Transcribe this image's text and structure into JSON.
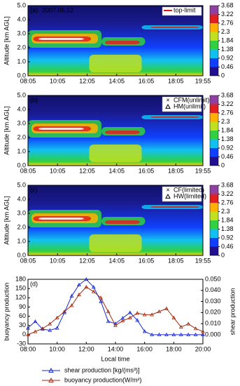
{
  "chart_data": [
    {
      "type": "heatmap",
      "panel_label": "(a)",
      "annotation": "2007.06.12",
      "ylabel": "Altitude [km AGL]",
      "xlim": [
        8.083,
        19.917
      ],
      "xticks": [
        {
          "value": 8.083,
          "label": "08:05"
        },
        {
          "value": 10.083,
          "label": "10:05"
        },
        {
          "value": 12.083,
          "label": "12:05"
        },
        {
          "value": 14.083,
          "label": "14:05"
        },
        {
          "value": 16.083,
          "label": "16:05"
        },
        {
          "value": 18.083,
          "label": "18:05"
        },
        {
          "value": 19.917,
          "label": "19:55"
        }
      ],
      "ylim": [
        0,
        5
      ],
      "yticks": [
        {
          "value": 0,
          "label": "0.0"
        },
        {
          "value": 1,
          "label": "1.0"
        },
        {
          "value": 2,
          "label": "2.0"
        },
        {
          "value": 3,
          "label": "3.0"
        },
        {
          "value": 4,
          "label": "4.0"
        },
        {
          "value": 5,
          "label": "5.0"
        }
      ],
      "colorbar_ticks": [
        0,
        0.46,
        0.92,
        1.38,
        1.84,
        2.3,
        2.76,
        3.22,
        3.68
      ],
      "colorbar_colors": [
        "#201090",
        "#1040ff",
        "#10c0f0",
        "#30d040",
        "#c0e020",
        "#ffb000",
        "#e02020",
        "#9040a0"
      ],
      "legend": [
        {
          "label": "top-limit",
          "color": "#d01818",
          "marker": "line"
        }
      ]
    },
    {
      "type": "heatmap",
      "panel_label": "(b)",
      "ylabel": "Altitude [km AGL]",
      "xlim": [
        8.083,
        19.917
      ],
      "xticks": [
        {
          "value": 8.083,
          "label": "08:05"
        },
        {
          "value": 10.083,
          "label": "10:05"
        },
        {
          "value": 12.083,
          "label": "12:05"
        },
        {
          "value": 14.083,
          "label": "14:05"
        },
        {
          "value": 16.083,
          "label": "16:05"
        },
        {
          "value": 18.083,
          "label": "18:05"
        },
        {
          "value": 19.917,
          "label": "19:55"
        }
      ],
      "ylim": [
        0,
        5
      ],
      "yticks": [
        {
          "value": 0,
          "label": "0.0"
        },
        {
          "value": 1,
          "label": "1.0"
        },
        {
          "value": 2,
          "label": "2.0"
        },
        {
          "value": 3,
          "label": "3.0"
        },
        {
          "value": 4,
          "label": "4.0"
        },
        {
          "value": 5,
          "label": "5.0"
        }
      ],
      "colorbar_ticks": [
        0,
        0.46,
        0.92,
        1.38,
        1.84,
        2.3,
        2.76,
        3.22,
        3.68
      ],
      "colorbar_colors": [
        "#201090",
        "#1040ff",
        "#10c0f0",
        "#30d040",
        "#c0e020",
        "#ffb000",
        "#e02020",
        "#9040a0"
      ],
      "legend": [
        {
          "label": "CFM(unlimit)",
          "color": "#d01818",
          "marker": "x"
        },
        {
          "label": "HM(unlimit)",
          "color": "#000000",
          "marker": "triangle"
        }
      ]
    },
    {
      "type": "heatmap",
      "panel_label": "(c)",
      "ylabel": "Altitude [km AGL]",
      "xlim": [
        8.083,
        19.917
      ],
      "xticks": [
        {
          "value": 8.083,
          "label": "08:05"
        },
        {
          "value": 10.083,
          "label": "10:05"
        },
        {
          "value": 12.083,
          "label": "12:05"
        },
        {
          "value": 14.083,
          "label": "14:05"
        },
        {
          "value": 16.083,
          "label": "16:05"
        },
        {
          "value": 18.083,
          "label": "18:05"
        },
        {
          "value": 19.917,
          "label": "19:55"
        }
      ],
      "ylim": [
        0,
        5
      ],
      "yticks": [
        {
          "value": 0,
          "label": "0.0"
        },
        {
          "value": 1,
          "label": "1.0"
        },
        {
          "value": 2,
          "label": "2.0"
        },
        {
          "value": 3,
          "label": "3.0"
        },
        {
          "value": 4,
          "label": "4.0"
        },
        {
          "value": 5,
          "label": "5.0"
        }
      ],
      "colorbar_ticks": [
        0,
        0.46,
        0.92,
        1.38,
        1.84,
        2.3,
        2.76,
        3.22,
        3.68
      ],
      "colorbar_colors": [
        "#201090",
        "#1040ff",
        "#10c0f0",
        "#30d040",
        "#c0e020",
        "#ffb000",
        "#e02020",
        "#9040a0"
      ],
      "legend": [
        {
          "label": "CF(limited)",
          "color": "#d01818",
          "marker": "x"
        },
        {
          "label": "HW(limited)",
          "color": "#000000",
          "marker": "triangle"
        }
      ]
    },
    {
      "type": "line",
      "panel_label": "(d)",
      "xlabel": "Local time",
      "ylabel": "buoyancy production",
      "y2label": "shear production",
      "x": [
        8,
        8.5,
        9,
        9.5,
        10,
        10.5,
        11,
        11.5,
        12,
        12.5,
        13,
        13.5,
        14,
        14.5,
        15,
        15.5,
        16,
        16.5,
        17,
        17.5,
        18,
        18.5,
        19,
        19.5,
        20
      ],
      "xlim": [
        8,
        20
      ],
      "xticks": [
        {
          "value": 8,
          "label": "08:00"
        },
        {
          "value": 10,
          "label": "10:00"
        },
        {
          "value": 12,
          "label": "12:00"
        },
        {
          "value": 14,
          "label": "14:00"
        },
        {
          "value": 16,
          "label": "16:00"
        },
        {
          "value": 18,
          "label": "18:00"
        },
        {
          "value": 20,
          "label": "20:00"
        }
      ],
      "ylim": [
        -30,
        180
      ],
      "yticks": [
        -30,
        0,
        30,
        60,
        90,
        120,
        150,
        180
      ],
      "y2lim": [
        -0.0083,
        0.05
      ],
      "y2ticks": [
        {
          "value": 0,
          "label": "0.000"
        },
        {
          "value": 0.01,
          "label": "0.010"
        },
        {
          "value": 0.02,
          "label": "0.020"
        },
        {
          "value": 0.03,
          "label": "0.030"
        },
        {
          "value": 0.04,
          "label": "0.040"
        },
        {
          "value": 0.05,
          "label": "0.050"
        }
      ],
      "series": [
        {
          "name": "shear production [kg/(ms³)]",
          "color": "#1a2ad0",
          "axis": "y2",
          "values": [
            0.006,
            0.012,
            0.005,
            0.004,
            0.006,
            0.02,
            0.035,
            0.045,
            0.05,
            0.043,
            0.03,
            0.012,
            0.01,
            0.015,
            0.02,
            0.013,
            0.003,
            0,
            0,
            0,
            0,
            0,
            0,
            0,
            0
          ]
        },
        {
          "name": "buoyancy production(W/m²)",
          "color": "#a02a10",
          "values": [
            0,
            10,
            20,
            35,
            55,
            75,
            95,
            130,
            155,
            140,
            120,
            75,
            30,
            45,
            55,
            70,
            65,
            65,
            75,
            85,
            55,
            25,
            35,
            20,
            10
          ]
        }
      ]
    }
  ]
}
